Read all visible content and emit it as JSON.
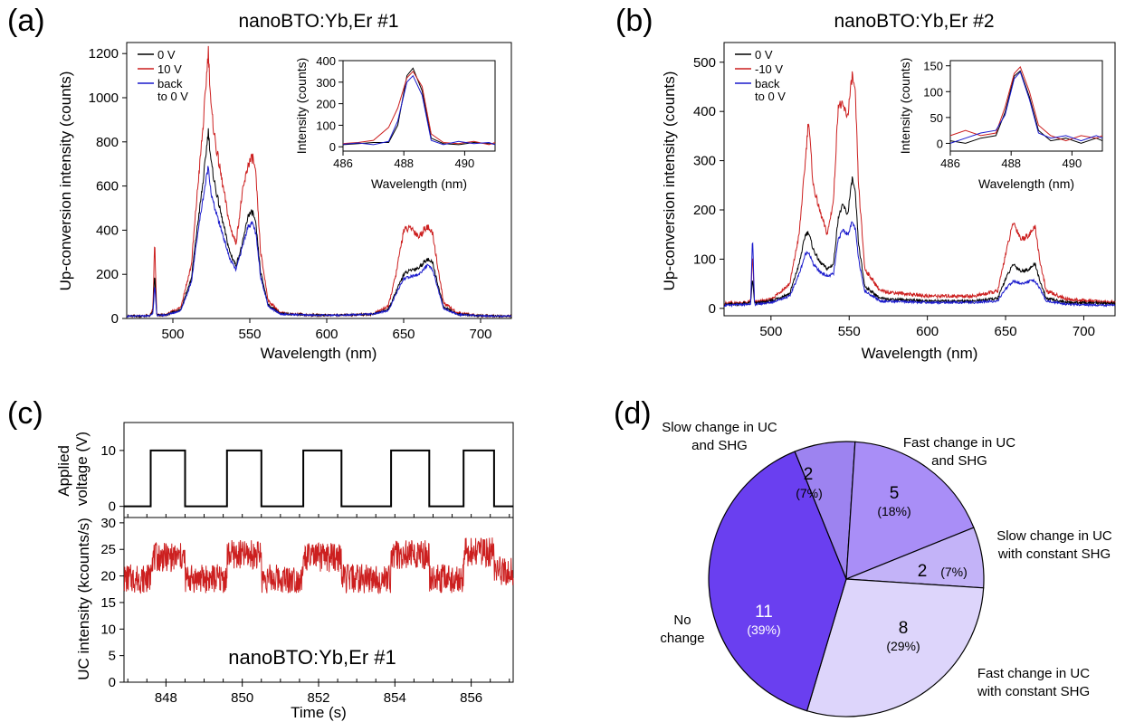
{
  "panel_labels": [
    "(a)",
    "(b)",
    "(c)",
    "(d)"
  ],
  "chart_data": [
    {
      "id": "a",
      "type": "line",
      "title": "nanoBTO:Yb,Er #1",
      "xlabel": "Wavelength (nm)",
      "ylabel": "Up-conversion intensity (counts)",
      "xlim": [
        470,
        720
      ],
      "ylim": [
        0,
        1250
      ],
      "xticks": [
        500,
        550,
        600,
        650,
        700
      ],
      "yticks": [
        0,
        200,
        400,
        600,
        800,
        1000,
        1200
      ],
      "legend_position": "top-left",
      "series": [
        {
          "name": "0 V",
          "color": "#000000",
          "x": [
            470,
            485,
            487,
            488.2,
            489.5,
            495,
            505,
            512,
            516,
            520,
            523,
            525,
            528,
            532,
            537,
            541,
            545,
            549,
            552,
            554,
            557,
            562,
            570,
            590,
            610,
            630,
            640,
            645,
            650,
            655,
            660,
            665,
            669,
            672,
            676,
            685,
            700,
            720
          ],
          "y": [
            10,
            12,
            30,
            200,
            15,
            15,
            40,
            180,
            420,
            640,
            850,
            700,
            580,
            450,
            300,
            240,
            330,
            470,
            480,
            420,
            210,
            60,
            22,
            15,
            15,
            20,
            40,
            120,
            200,
            220,
            230,
            270,
            250,
            160,
            50,
            20,
            12,
            10
          ]
        },
        {
          "name": "10 V",
          "color": "#cc1f1f",
          "x": [
            470,
            485,
            487,
            488.2,
            489.5,
            495,
            505,
            512,
            516,
            520,
            523,
            525,
            528,
            532,
            537,
            541,
            545,
            549,
            552,
            554,
            557,
            562,
            570,
            590,
            610,
            630,
            640,
            645,
            650,
            655,
            660,
            665,
            669,
            672,
            676,
            685,
            700,
            720
          ],
          "y": [
            10,
            12,
            40,
            355,
            15,
            15,
            50,
            240,
            580,
            900,
            1215,
            940,
            780,
            620,
            420,
            340,
            560,
            700,
            730,
            640,
            300,
            80,
            25,
            15,
            15,
            20,
            55,
            200,
            400,
            410,
            370,
            420,
            380,
            240,
            70,
            25,
            12,
            10
          ]
        },
        {
          "name": "back\nto 0 V",
          "color": "#1a1acc",
          "x": [
            470,
            485,
            487,
            488.2,
            489.5,
            495,
            505,
            512,
            516,
            520,
            523,
            525,
            528,
            532,
            537,
            541,
            545,
            549,
            552,
            554,
            557,
            562,
            570,
            590,
            610,
            630,
            640,
            645,
            650,
            655,
            660,
            665,
            669,
            672,
            676,
            685,
            700,
            720
          ],
          "y": [
            10,
            12,
            25,
            150,
            15,
            15,
            35,
            160,
            380,
            560,
            690,
            560,
            480,
            390,
            270,
            220,
            320,
            420,
            430,
            380,
            190,
            55,
            20,
            15,
            15,
            20,
            35,
            110,
            180,
            190,
            200,
            240,
            220,
            140,
            45,
            18,
            12,
            10
          ]
        }
      ],
      "inset": {
        "xlabel": "Wavelength (nm)",
        "ylabel": "Intensity (counts)",
        "xlim": [
          486,
          491
        ],
        "ylim": [
          -20,
          400
        ],
        "xticks": [
          486,
          488,
          490
        ],
        "yticks": [
          0,
          100,
          200,
          300,
          400
        ],
        "series": [
          {
            "color": "#000000",
            "x": [
              486,
              486.5,
              487,
              487.5,
              487.8,
              488.1,
              488.3,
              488.6,
              488.9,
              489.3,
              489.8,
              490.3,
              490.8,
              491
            ],
            "y": [
              10,
              15,
              20,
              20,
              100,
              330,
              365,
              260,
              40,
              15,
              10,
              20,
              15,
              12
            ]
          },
          {
            "color": "#cc1f1f",
            "x": [
              486,
              486.5,
              487,
              487.5,
              487.8,
              488.1,
              488.3,
              488.6,
              488.9,
              489.3,
              489.8,
              490.3,
              490.8,
              491
            ],
            "y": [
              15,
              20,
              30,
              90,
              180,
              320,
              350,
              280,
              60,
              20,
              15,
              25,
              10,
              20
            ]
          },
          {
            "color": "#1a1acc",
            "x": [
              486,
              486.5,
              487,
              487.5,
              487.8,
              488.1,
              488.3,
              488.6,
              488.9,
              489.3,
              489.8,
              490.3,
              490.8,
              491
            ],
            "y": [
              12,
              18,
              10,
              25,
              120,
              300,
              330,
              240,
              30,
              10,
              25,
              15,
              20,
              10
            ]
          }
        ]
      }
    },
    {
      "id": "b",
      "type": "line",
      "title": "nanoBTO:Yb,Er #2",
      "xlabel": "Wavelength (nm)",
      "ylabel": "Up-conversion intensity (counts)",
      "xlim": [
        470,
        720
      ],
      "ylim": [
        -15,
        540
      ],
      "xticks": [
        500,
        550,
        600,
        650,
        700
      ],
      "yticks": [
        0,
        100,
        200,
        300,
        400,
        500
      ],
      "legend_position": "top-left",
      "series": [
        {
          "name": "0 V",
          "color": "#000000",
          "x": [
            470,
            485,
            487,
            488.2,
            489.5,
            500,
            512,
            518,
            522,
            524,
            527,
            531,
            536,
            540,
            543,
            546,
            549,
            552,
            554,
            556,
            560,
            570,
            600,
            630,
            645,
            650,
            655,
            660,
            665,
            669,
            672,
            676,
            690,
            720
          ],
          "y": [
            8,
            10,
            12,
            60,
            10,
            15,
            30,
            90,
            150,
            155,
            120,
            95,
            80,
            90,
            185,
            210,
            190,
            265,
            230,
            130,
            45,
            20,
            15,
            15,
            20,
            60,
            90,
            75,
            80,
            90,
            55,
            20,
            12,
            10
          ]
        },
        {
          "name": "-10 V",
          "color": "#cc1f1f",
          "x": [
            470,
            485,
            487,
            488.2,
            489.5,
            500,
            512,
            518,
            522,
            524,
            527,
            531,
            536,
            540,
            543,
            546,
            549,
            552,
            554,
            556,
            560,
            570,
            600,
            630,
            645,
            650,
            655,
            660,
            665,
            669,
            672,
            676,
            690,
            720
          ],
          "y": [
            10,
            12,
            15,
            110,
            12,
            18,
            50,
            150,
            300,
            385,
            250,
            200,
            150,
            220,
            415,
            410,
            390,
            475,
            430,
            250,
            80,
            35,
            25,
            25,
            35,
            110,
            175,
            140,
            150,
            165,
            95,
            35,
            18,
            12
          ]
        },
        {
          "name": "back\nto 0 V",
          "color": "#1a1acc",
          "x": [
            470,
            485,
            487,
            488.2,
            489.5,
            500,
            512,
            518,
            522,
            524,
            527,
            531,
            536,
            540,
            543,
            546,
            549,
            552,
            554,
            556,
            560,
            570,
            600,
            630,
            645,
            650,
            655,
            660,
            665,
            669,
            672,
            676,
            690,
            720
          ],
          "y": [
            6,
            8,
            10,
            145,
            8,
            12,
            25,
            70,
            110,
            115,
            90,
            75,
            65,
            70,
            140,
            160,
            150,
            175,
            160,
            100,
            35,
            15,
            12,
            12,
            15,
            40,
            55,
            50,
            55,
            55,
            40,
            15,
            8,
            6
          ]
        }
      ],
      "inset": {
        "xlabel": "Wavelength (nm)",
        "ylabel": "Intensity (counts)",
        "xlim": [
          486,
          491
        ],
        "ylim": [
          -15,
          160
        ],
        "xticks": [
          486,
          488,
          490
        ],
        "yticks": [
          0,
          50,
          100,
          150
        ],
        "series": [
          {
            "color": "#000000",
            "x": [
              486,
              486.5,
              487,
              487.5,
              487.8,
              488.1,
              488.3,
              488.6,
              488.9,
              489.3,
              489.8,
              490.3,
              490.8,
              491
            ],
            "y": [
              5,
              0,
              10,
              15,
              60,
              130,
              140,
              90,
              25,
              5,
              10,
              0,
              10,
              5
            ]
          },
          {
            "color": "#cc1f1f",
            "x": [
              486,
              486.5,
              487,
              487.5,
              487.8,
              488.1,
              488.3,
              488.6,
              488.9,
              489.3,
              489.8,
              490.3,
              490.8,
              491
            ],
            "y": [
              15,
              25,
              15,
              20,
              70,
              135,
              148,
              100,
              35,
              15,
              5,
              15,
              10,
              15
            ]
          },
          {
            "color": "#1a1acc",
            "x": [
              486,
              486.5,
              487,
              487.5,
              487.8,
              488.1,
              488.3,
              488.6,
              488.9,
              489.3,
              489.8,
              490.3,
              490.8,
              491
            ],
            "y": [
              0,
              10,
              20,
              25,
              55,
              125,
              138,
              85,
              20,
              10,
              15,
              5,
              15,
              10
            ]
          }
        ]
      }
    },
    {
      "id": "c",
      "type": "line",
      "title": "nanoBTO:Yb,Er #1",
      "xlabel": "Time (s)",
      "xlim": [
        846.9,
        857.1
      ],
      "xticks": [
        848,
        850,
        852,
        854,
        856
      ],
      "top": {
        "ylabel": "Applied\nvoltage (V)",
        "ylim": [
          -2,
          15
        ],
        "yticks": [
          0,
          10
        ],
        "color": "#000000",
        "x": [
          846.9,
          847.6,
          847.6,
          848.5,
          848.5,
          849.6,
          849.6,
          850.5,
          850.5,
          851.6,
          851.6,
          852.6,
          852.6,
          853.9,
          853.9,
          854.9,
          854.9,
          855.8,
          855.8,
          856.6,
          856.6,
          857.1
        ],
        "y": [
          0,
          0,
          10,
          10,
          0,
          0,
          10,
          10,
          0,
          0,
          10,
          10,
          0,
          0,
          10,
          10,
          0,
          0,
          10,
          10,
          0,
          0
        ]
      },
      "bottom": {
        "ylabel": "UC intensity (kcounts/s)",
        "ylim": [
          0,
          31
        ],
        "yticks": [
          0,
          5,
          10,
          15,
          20,
          25,
          30
        ],
        "color": "#cc1f1f",
        "x": [
          846.9,
          847.6,
          848.5,
          849.6,
          850.5,
          851.6,
          852.6,
          853.9,
          854.9,
          855.8,
          856.6,
          857.1
        ],
        "y": [
          19.5,
          23.5,
          19.5,
          24,
          19.5,
          23.5,
          19.5,
          24,
          19.5,
          24.5,
          21,
          19.5
        ]
      }
    },
    {
      "id": "d",
      "type": "pie",
      "slices": [
        {
          "label": "Slow change in UC\nand SHG",
          "count": "2",
          "percent": "(7%)",
          "value": 2,
          "color": "#9d83f0"
        },
        {
          "label": "Fast change in UC\nand SHG",
          "count": "5",
          "percent": "(18%)",
          "value": 5,
          "color": "#a98ef7"
        },
        {
          "label": "Slow change in UC\nwith constant SHG",
          "count": "2",
          "percent": "(7%)",
          "value": 2,
          "color": "#c3b3f8"
        },
        {
          "label": "Fast change in UC\nwith constant SHG",
          "count": "8",
          "percent": "(29%)",
          "value": 8,
          "color": "#ddd5fb"
        },
        {
          "label": "No\nchange",
          "count": "11",
          "percent": "(39%)",
          "value": 11,
          "color": "#6a3ff0"
        }
      ]
    }
  ]
}
